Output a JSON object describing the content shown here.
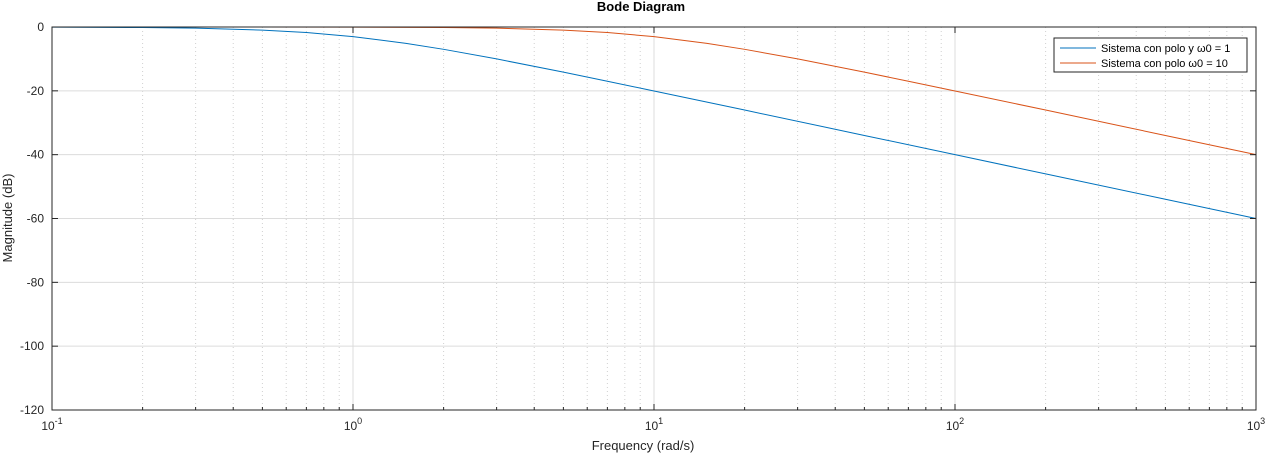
{
  "chart_data": {
    "type": "line",
    "title": "Bode Diagram",
    "xlabel": "Frequency  (rad/s)",
    "ylabel": "Magnitude (dB)",
    "xscale": "log",
    "xlim": [
      0.1,
      1000
    ],
    "ylim": [
      -120,
      0
    ],
    "yticks": [
      "0",
      "-20",
      "-40",
      "-60",
      "-80",
      "-100",
      "-120"
    ],
    "xticks": [
      {
        "base": "10",
        "exp": "-1"
      },
      {
        "base": "10",
        "exp": "0"
      },
      {
        "base": "10",
        "exp": "1"
      },
      {
        "base": "10",
        "exp": "2"
      },
      {
        "base": "10",
        "exp": "3"
      }
    ],
    "grid": true,
    "legend_position": "top-right",
    "series": [
      {
        "name": "Sistema con polo y ω0 = 1",
        "color": "#0072BD",
        "x": [
          0.1,
          0.2,
          0.3,
          0.5,
          0.7,
          1,
          1.5,
          2,
          3,
          5,
          7,
          10,
          20,
          50,
          100,
          200,
          500,
          1000
        ],
        "y": [
          -0.04,
          -0.17,
          -0.37,
          -0.97,
          -1.73,
          -3.01,
          -5.12,
          -6.99,
          -10.0,
          -14.15,
          -16.99,
          -20.04,
          -26.02,
          -33.98,
          -40.0,
          -46.02,
          -53.98,
          -60.0
        ]
      },
      {
        "name": "Sistema con polo ω0 = 10",
        "color": "#D95319",
        "x": [
          0.1,
          0.5,
          1,
          2,
          3,
          5,
          7,
          10,
          15,
          20,
          30,
          50,
          70,
          100,
          200,
          500,
          1000
        ],
        "y": [
          0.0,
          -0.01,
          -0.04,
          -0.17,
          -0.37,
          -0.97,
          -1.73,
          -3.01,
          -5.12,
          -6.99,
          -10.0,
          -14.15,
          -16.99,
          -20.04,
          -26.02,
          -33.98,
          -40.0
        ]
      }
    ]
  }
}
